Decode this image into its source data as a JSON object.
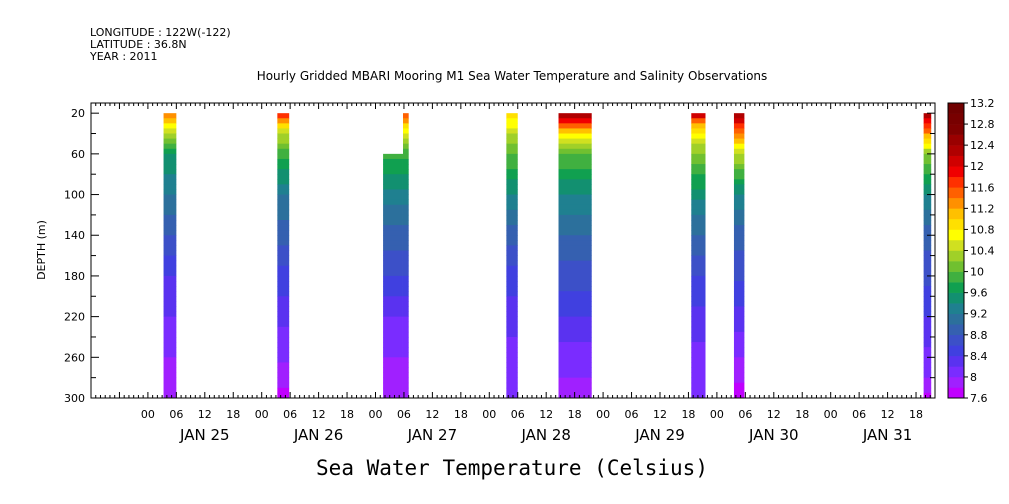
{
  "header": {
    "lines": [
      "LONGITUDE : 122W(-122)",
      "LATITUDE : 36.8N",
      "YEAR : 2011"
    ]
  },
  "chart_data": {
    "type": "heatmap",
    "title": "Hourly Gridded MBARI Mooring M1 Sea Water Temperature and Salinity Observations",
    "xlabel": "Sea Water Temperature (Celsius)",
    "ylabel": "DEPTH (m)",
    "x_units": "hours since JAN 25 00:00, 2011",
    "xlim": [
      -12,
      166
    ],
    "ylim": [
      300,
      10
    ],
    "y_ticks": [
      20,
      60,
      100,
      140,
      180,
      220,
      260,
      300
    ],
    "x_tick_labels": [
      "00",
      "06",
      "12",
      "18"
    ],
    "x_tick_interval_hours": 6,
    "day_labels": [
      {
        "label": "JAN 25",
        "hour": 12
      },
      {
        "label": "JAN 26",
        "hour": 36
      },
      {
        "label": "JAN 27",
        "hour": 60
      },
      {
        "label": "JAN 28",
        "hour": 84
      },
      {
        "label": "JAN 29",
        "hour": 108
      },
      {
        "label": "JAN 30",
        "hour": 132
      },
      {
        "label": "JAN 31",
        "hour": 156
      }
    ],
    "colorbar": {
      "ticks": [
        "13.2",
        "12.8",
        "12.4",
        "12",
        "11.6",
        "11.2",
        "10.8",
        "10.4",
        "10",
        "9.6",
        "9.2",
        "8.8",
        "8.4",
        "8",
        "7.6"
      ],
      "min": 7.6,
      "max": 13.2,
      "step": 0.2,
      "colors": [
        "#c000ff",
        "#a020ff",
        "#7a2cff",
        "#5a32f0",
        "#4040e0",
        "#3c50c8",
        "#3560b0",
        "#2c709c",
        "#1f8090",
        "#129070",
        "#10a050",
        "#40b040",
        "#70c030",
        "#a0d028",
        "#d0e020",
        "#ffff00",
        "#ffe000",
        "#ffc000",
        "#ff9000",
        "#ff6000",
        "#ff3000",
        "#f00000",
        "#d00000",
        "#b00000",
        "#9a0000",
        "#800000",
        "#780000",
        "#700000"
      ]
    },
    "segments": [
      {
        "start": 3.3,
        "end": 6.0,
        "top": 20,
        "profile": [
          [
            20,
            11.4
          ],
          [
            40,
            10.4
          ],
          [
            60,
            9.6
          ],
          [
            100,
            9.2
          ],
          [
            140,
            8.8
          ],
          [
            180,
            8.4
          ],
          [
            260,
            8.0
          ],
          [
            300,
            7.9
          ]
        ]
      },
      {
        "start": 27.3,
        "end": 29.8,
        "top": 20,
        "profile": [
          [
            20,
            11.8
          ],
          [
            40,
            10.4
          ],
          [
            60,
            9.9
          ],
          [
            100,
            9.2
          ],
          [
            140,
            8.9
          ],
          [
            180,
            8.5
          ],
          [
            250,
            8.1
          ],
          [
            300,
            7.7
          ]
        ]
      },
      {
        "start": 49.6,
        "end": 53.8,
        "top": 60,
        "profile": [
          [
            60,
            9.9
          ],
          [
            100,
            9.3
          ],
          [
            140,
            8.9
          ],
          [
            180,
            8.6
          ],
          [
            220,
            8.2
          ],
          [
            260,
            8.0
          ],
          [
            300,
            7.8
          ]
        ]
      },
      {
        "start": 53.8,
        "end": 55.0,
        "top": 20,
        "profile": [
          [
            20,
            11.6
          ],
          [
            40,
            10.6
          ],
          [
            60,
            9.9
          ],
          [
            100,
            9.3
          ],
          [
            140,
            8.9
          ],
          [
            180,
            8.6
          ],
          [
            220,
            8.2
          ],
          [
            260,
            8.0
          ],
          [
            300,
            7.8
          ]
        ]
      },
      {
        "start": 75.6,
        "end": 78.0,
        "top": 20,
        "profile": [
          [
            20,
            11.0
          ],
          [
            40,
            10.4
          ],
          [
            60,
            10.0
          ],
          [
            100,
            9.4
          ],
          [
            140,
            8.9
          ],
          [
            180,
            8.5
          ],
          [
            260,
            8.1
          ],
          [
            300,
            8.0
          ]
        ]
      },
      {
        "start": 86.6,
        "end": 93.6,
        "top": 20,
        "profile": [
          [
            20,
            12.6
          ],
          [
            30,
            11.6
          ],
          [
            40,
            10.8
          ],
          [
            60,
            10.0
          ],
          [
            100,
            9.4
          ],
          [
            140,
            9.0
          ],
          [
            180,
            8.7
          ],
          [
            220,
            8.4
          ],
          [
            260,
            8.1
          ],
          [
            300,
            7.9
          ]
        ]
      },
      {
        "start": 114.6,
        "end": 117.6,
        "top": 20,
        "profile": [
          [
            20,
            12.4
          ],
          [
            30,
            11.3
          ],
          [
            50,
            10.4
          ],
          [
            80,
            9.8
          ],
          [
            120,
            9.2
          ],
          [
            180,
            8.6
          ],
          [
            260,
            8.1
          ],
          [
            300,
            8.0
          ]
        ]
      },
      {
        "start": 123.6,
        "end": 125.8,
        "top": 20,
        "profile": [
          [
            20,
            12.4
          ],
          [
            40,
            11.4
          ],
          [
            60,
            10.4
          ],
          [
            100,
            9.4
          ],
          [
            140,
            8.9
          ],
          [
            200,
            8.5
          ],
          [
            260,
            8.0
          ],
          [
            300,
            7.7
          ]
        ]
      },
      {
        "start": 163.6,
        "end": 165.2,
        "top": 20,
        "profile": [
          [
            20,
            12.4
          ],
          [
            40,
            11.3
          ],
          [
            60,
            10.2
          ],
          [
            100,
            9.4
          ],
          [
            140,
            8.9
          ],
          [
            220,
            8.4
          ],
          [
            280,
            8.0
          ],
          [
            300,
            7.7
          ]
        ]
      }
    ]
  }
}
